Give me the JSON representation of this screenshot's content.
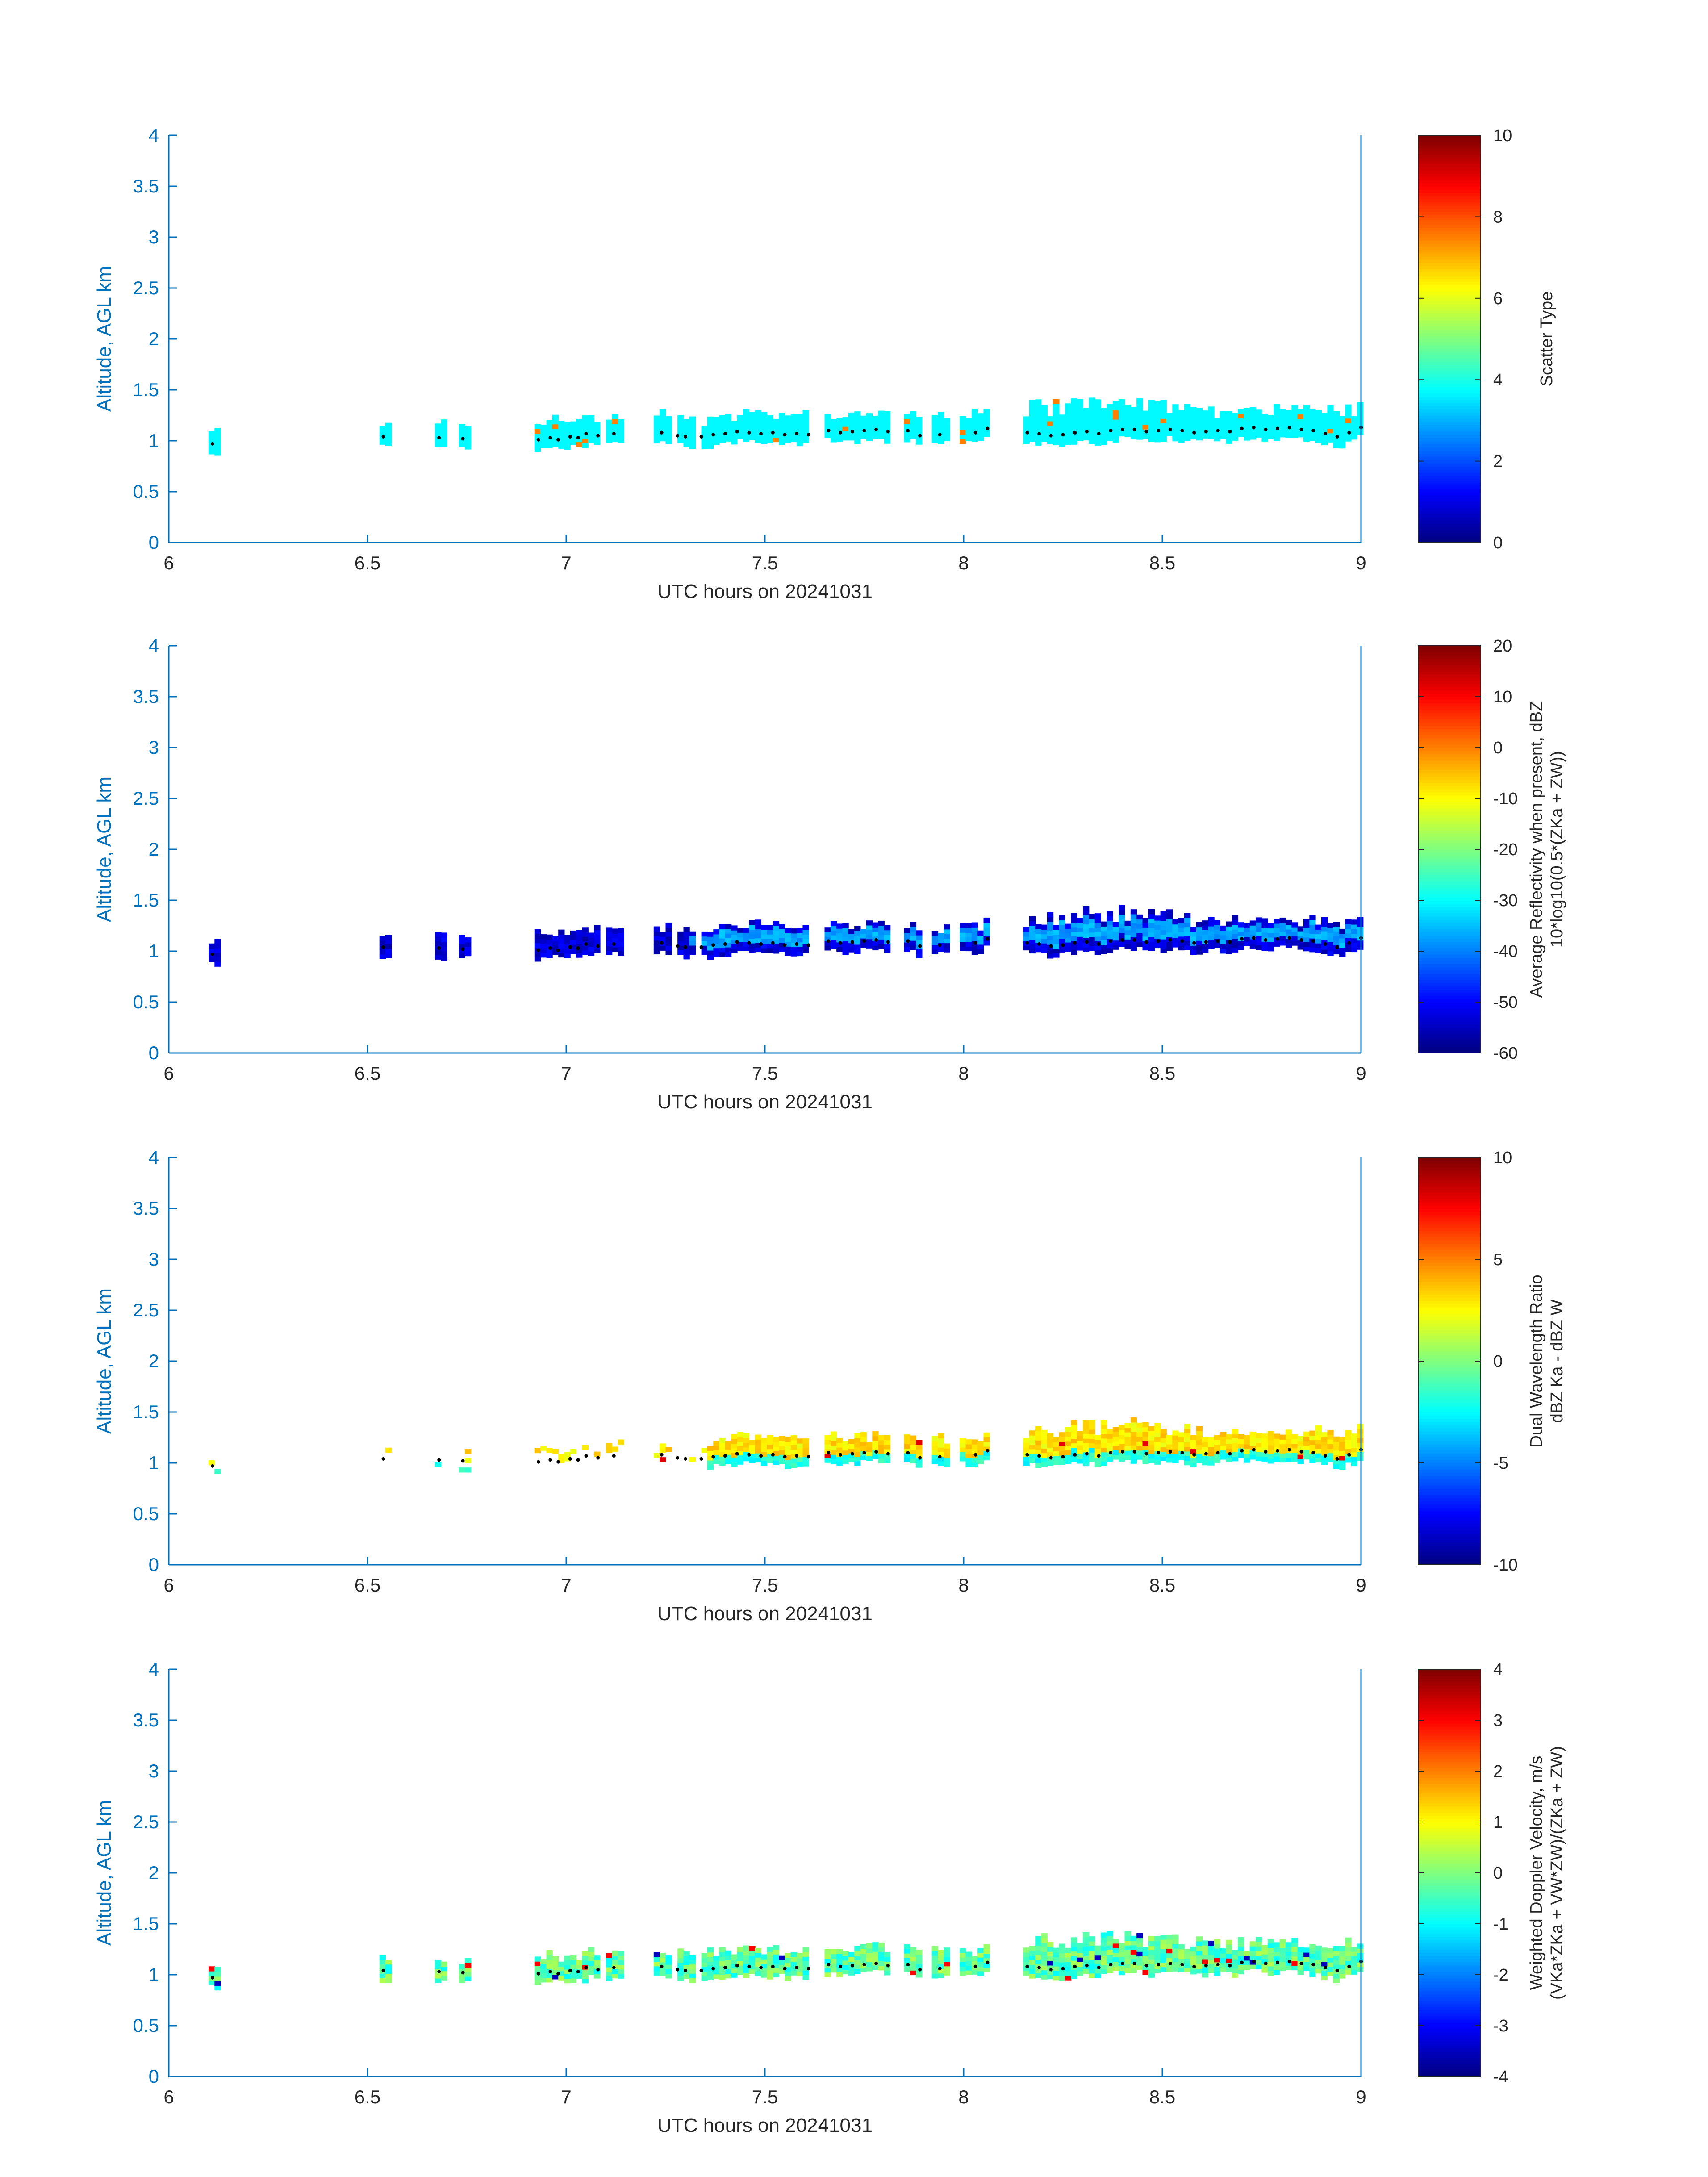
{
  "chart_data": [
    {
      "type": "heatmap",
      "panel": 1,
      "xlabel": "UTC hours on 20241031",
      "ylabel": "Altitude, AGL km",
      "xlim": [
        6,
        9
      ],
      "ylim": [
        0,
        4
      ],
      "xticks": [
        "6",
        "6.5",
        "7",
        "7.5",
        "8",
        "8.5",
        "9"
      ],
      "yticks": [
        "0",
        "0.5",
        "1",
        "1.5",
        "2",
        "2.5",
        "3",
        "3.5",
        "4"
      ],
      "colorbar": {
        "label_lines": [
          "Scatter Type"
        ],
        "range": [
          0,
          10
        ],
        "ticks": [
          "0",
          "2",
          "4",
          "6",
          "8",
          "10"
        ]
      },
      "field_description": "mostly value ~3.5-4 (cyan) between 0.9 and 1.35 km; a few values ~7-8 near 7.0-8.05 h",
      "dominant_value": 3.7,
      "occasional_values": [
        7.5
      ]
    },
    {
      "type": "heatmap",
      "panel": 2,
      "xlabel": "UTC hours on 20241031",
      "ylabel": "Altitude, AGL km",
      "xlim": [
        6,
        9
      ],
      "ylim": [
        0,
        4
      ],
      "xticks": [
        "6",
        "6.5",
        "7",
        "7.5",
        "8",
        "8.5",
        "9"
      ],
      "yticks": [
        "0",
        "0.5",
        "1",
        "1.5",
        "2",
        "2.5",
        "3",
        "3.5",
        "4"
      ],
      "colorbar": {
        "label_lines": [
          "Average Reflectivity when present, dBZ",
          "10*log10(0.5*(ZKa + ZW))"
        ],
        "range": [
          -60,
          20
        ],
        "ticks": [
          "-60",
          "-50",
          "-40",
          "-30",
          "-20",
          "-10",
          "0",
          "10",
          "20"
        ]
      },
      "dominant_value": -57,
      "core_value": -40
    },
    {
      "type": "heatmap",
      "panel": 3,
      "xlabel": "UTC hours on 20241031",
      "ylabel": "Altitude, AGL km",
      "xlim": [
        6,
        9
      ],
      "ylim": [
        0,
        4
      ],
      "xticks": [
        "6",
        "6.5",
        "7",
        "7.5",
        "8",
        "8.5",
        "9"
      ],
      "yticks": [
        "0",
        "0.5",
        "1",
        "1.5",
        "2",
        "2.5",
        "3",
        "3.5",
        "4"
      ],
      "colorbar": {
        "label_lines": [
          "Dual Wavelength Ratio",
          "dBZ Ka - dBZ W"
        ],
        "range": [
          -10,
          10
        ],
        "ticks": [
          "-10",
          "-5",
          "0",
          "5",
          "10"
        ]
      },
      "dominant_value": 2,
      "lower_value": -3
    },
    {
      "type": "heatmap",
      "panel": 4,
      "xlabel": "UTC hours on 20241031",
      "ylabel": "Altitude, AGL km",
      "xlim": [
        6,
        9
      ],
      "ylim": [
        0,
        4
      ],
      "xticks": [
        "6",
        "6.5",
        "7",
        "7.5",
        "8",
        "8.5",
        "9"
      ],
      "yticks": [
        "0",
        "0.5",
        "1",
        "1.5",
        "2",
        "2.5",
        "3",
        "3.5",
        "4"
      ],
      "colorbar": {
        "label_lines": [
          "Weighted Doppler Velocity, m/s",
          "(VKa*ZKa + VW*ZW)/(ZKa + ZW)"
        ],
        "range": [
          -4,
          4
        ],
        "ticks": [
          "-4",
          "-3",
          "-2",
          "-1",
          "0",
          "1",
          "2",
          "3",
          "4"
        ]
      },
      "dominant_value": -0.3
    }
  ],
  "cloud_base_series": {
    "x_hours": [
      6.11,
      6.54,
      6.68,
      6.74,
      6.93,
      6.96,
      6.98,
      7.01,
      7.03,
      7.05,
      7.08,
      7.12,
      7.24,
      7.28,
      7.3,
      7.34,
      7.37,
      7.4,
      7.43,
      7.46,
      7.49,
      7.52,
      7.55,
      7.58,
      7.61,
      7.66,
      7.69,
      7.72,
      7.75,
      7.78,
      7.81,
      7.86,
      7.89,
      7.94,
      8.03,
      8.06,
      8.16,
      8.19,
      8.22,
      8.25,
      8.28,
      8.31,
      8.34,
      8.37,
      8.4,
      8.43,
      8.46,
      8.49,
      8.52,
      8.55,
      8.58,
      8.61,
      8.64,
      8.67,
      8.7,
      8.73,
      8.76,
      8.79,
      8.82,
      8.85,
      8.88,
      8.91,
      8.94,
      8.97,
      9.0
    ],
    "y_km": [
      0.97,
      1.04,
      1.03,
      1.02,
      1.01,
      1.03,
      1.01,
      1.04,
      1.03,
      1.07,
      1.05,
      1.07,
      1.08,
      1.05,
      1.04,
      1.04,
      1.06,
      1.07,
      1.09,
      1.08,
      1.07,
      1.08,
      1.06,
      1.07,
      1.06,
      1.1,
      1.08,
      1.09,
      1.1,
      1.11,
      1.09,
      1.1,
      1.05,
      1.06,
      1.08,
      1.12,
      1.08,
      1.07,
      1.05,
      1.06,
      1.08,
      1.09,
      1.07,
      1.1,
      1.11,
      1.11,
      1.09,
      1.1,
      1.11,
      1.1,
      1.08,
      1.09,
      1.1,
      1.09,
      1.12,
      1.13,
      1.11,
      1.12,
      1.13,
      1.11,
      1.1,
      1.07,
      1.04,
      1.08,
      1.13
    ]
  }
}
